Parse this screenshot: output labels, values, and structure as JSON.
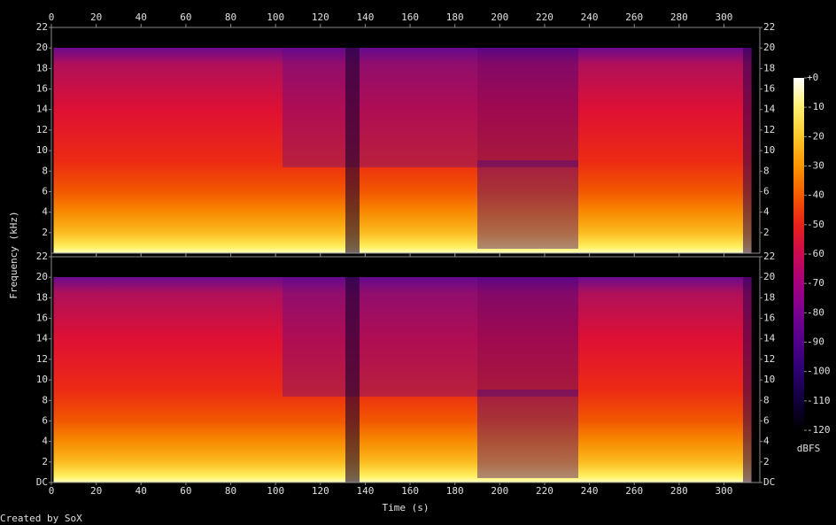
{
  "chart_data": {
    "type": "spectrogram",
    "x_label": "Time (s)",
    "y_label": "Frequency (kHz)",
    "xlim": [
      0,
      316
    ],
    "xticks": [
      0,
      20,
      40,
      60,
      80,
      100,
      120,
      140,
      160,
      180,
      200,
      220,
      240,
      260,
      280,
      300
    ],
    "panels": [
      {
        "ylim": [
          0,
          22
        ],
        "yticks": [
          2,
          4,
          6,
          8,
          10,
          12,
          14,
          16,
          18,
          20,
          22
        ]
      },
      {
        "ylim": [
          0,
          22
        ],
        "yticks": [
          {
            "value": 0,
            "label": "DC"
          },
          2,
          4,
          6,
          8,
          10,
          12,
          14,
          16,
          18,
          20,
          22
        ]
      }
    ],
    "colorbar": {
      "label": "dBFS",
      "lim": [
        -120,
        0
      ],
      "ticks": [
        {
          "value": 0,
          "label": "+0"
        },
        -10,
        -20,
        -30,
        -40,
        -50,
        -60,
        -70,
        -80,
        -90,
        -100,
        -110,
        -120
      ],
      "colors": [
        "#000000",
        "#10003a",
        "#2a0070",
        "#50008a",
        "#7a0090",
        "#a50080",
        "#cc0a50",
        "#e8201a",
        "#f55a00",
        "#fb9400",
        "#fdc82a",
        "#fff070",
        "#ffffff"
      ]
    }
  },
  "credit": "Created by SoX"
}
